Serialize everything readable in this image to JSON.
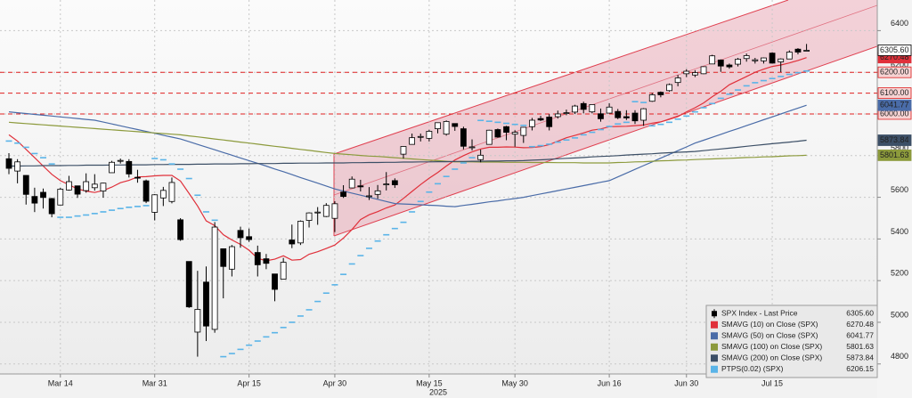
{
  "chart_data": {
    "type": "candlestick",
    "year_label": "2025",
    "categories": [
      null,
      null,
      null,
      null,
      null,
      null,
      "Mar 14",
      null,
      null,
      null,
      null,
      null,
      null,
      null,
      null,
      null,
      null,
      "Mar 31",
      null,
      null,
      null,
      null,
      null,
      null,
      null,
      null,
      null,
      null,
      "Apr 15",
      null,
      null,
      null,
      null,
      null,
      null,
      null,
      null,
      null,
      "Apr 30",
      null,
      null,
      null,
      null,
      null,
      null,
      null,
      null,
      null,
      null,
      "May 15",
      null,
      null,
      null,
      null,
      null,
      null,
      null,
      null,
      null,
      "May 30",
      null,
      null,
      null,
      null,
      null,
      null,
      null,
      null,
      null,
      null,
      "Jun 16",
      null,
      null,
      null,
      null,
      null,
      null,
      null,
      null,
      "Jun 30",
      null,
      null,
      null,
      null,
      null,
      null,
      null,
      null,
      null,
      "Jul 15",
      null,
      null,
      null,
      null
    ],
    "ohlc": [
      [
        5785,
        5812,
        5711,
        5739
      ],
      [
        5726,
        5783,
        5667,
        5770
      ],
      [
        5705,
        5706,
        5565,
        5614
      ],
      [
        5604,
        5646,
        5529,
        5572
      ],
      [
        5624,
        5642,
        5546,
        5599
      ],
      [
        5594,
        5597,
        5504,
        5521
      ],
      [
        5563,
        5645,
        5563,
        5639
      ],
      [
        5635,
        5703,
        5632,
        5675
      ],
      [
        5655,
        5655,
        5597,
        5615
      ],
      [
        5632,
        5715,
        5622,
        5675
      ],
      [
        5646,
        5711,
        5632,
        5663
      ],
      [
        5630,
        5670,
        5598,
        5668
      ],
      [
        5718,
        5775,
        5718,
        5768
      ],
      [
        5775,
        5786,
        5762,
        5777
      ],
      [
        5772,
        5783,
        5695,
        5712
      ],
      [
        5696,
        5732,
        5670,
        5693
      ],
      [
        5679,
        5685,
        5572,
        5581
      ],
      [
        5528,
        5615,
        5489,
        5612
      ],
      [
        5597,
        5650,
        5558,
        5633
      ],
      [
        5580,
        5695,
        5571,
        5671
      ],
      [
        5492,
        5500,
        5391,
        5397
      ],
      [
        5292,
        5292,
        5069,
        5074
      ],
      [
        4953,
        5247,
        4835,
        5062
      ],
      [
        5193,
        5268,
        4910,
        4982
      ],
      [
        4966,
        5481,
        4950,
        5457
      ],
      [
        5353,
        5353,
        5115,
        5268
      ],
      [
        5255,
        5371,
        5220,
        5363
      ],
      [
        5441,
        5459,
        5358,
        5406
      ],
      [
        5411,
        5450,
        5386,
        5397
      ],
      [
        5335,
        5368,
        5220,
        5276
      ],
      [
        5305,
        5328,
        5255,
        5283
      ],
      [
        5232,
        5232,
        5101,
        5158
      ],
      [
        5207,
        5309,
        5207,
        5288
      ],
      [
        5395,
        5469,
        5356,
        5376
      ],
      [
        5381,
        5489,
        5371,
        5485
      ],
      [
        5489,
        5528,
        5455,
        5525
      ],
      [
        5529,
        5553,
        5468,
        5529
      ],
      [
        5508,
        5572,
        5505,
        5561
      ],
      [
        5499,
        5581,
        5433,
        5569
      ],
      [
        5625,
        5658,
        5597,
        5604
      ],
      [
        5645,
        5700,
        5644,
        5687
      ],
      [
        5655,
        5684,
        5628,
        5650
      ],
      [
        5606,
        5649,
        5587,
        5607
      ],
      [
        5614,
        5659,
        5593,
        5631
      ],
      [
        5663,
        5721,
        5633,
        5664
      ],
      [
        5680,
        5691,
        5645,
        5660
      ],
      [
        5807,
        5845,
        5786,
        5844
      ],
      [
        5854,
        5906,
        5854,
        5886
      ],
      [
        5891,
        5906,
        5868,
        5892
      ],
      [
        5883,
        5924,
        5868,
        5917
      ],
      [
        5929,
        5958,
        5907,
        5958
      ],
      [
        5903,
        5969,
        5896,
        5964
      ],
      [
        5954,
        5955,
        5919,
        5940
      ],
      [
        5929,
        5939,
        5830,
        5845
      ],
      [
        5841,
        5878,
        5825,
        5842
      ],
      [
        5781,
        5829,
        5768,
        5802
      ],
      [
        5854,
        5924,
        5854,
        5922
      ],
      [
        5925,
        5930,
        5886,
        5889
      ],
      [
        5939,
        5943,
        5874,
        5912
      ],
      [
        5903,
        5922,
        5843,
        5912
      ],
      [
        5897,
        5938,
        5861,
        5936
      ],
      [
        5939,
        5981,
        5921,
        5970
      ],
      [
        5978,
        5991,
        5966,
        5971
      ],
      [
        5985,
        5999,
        5921,
        5939
      ],
      [
        5987,
        6016,
        5978,
        6000
      ],
      [
        6004,
        6021,
        5994,
        6006
      ],
      [
        6009,
        6044,
        6000,
        6038
      ],
      [
        6050,
        6059,
        6003,
        6022
      ],
      [
        6010,
        6045,
        6003,
        6045
      ],
      [
        6001,
        6026,
        5963,
        5977
      ],
      [
        6004,
        6051,
        6004,
        6033
      ],
      [
        6012,
        6024,
        5975,
        5982
      ],
      [
        5987,
        6018,
        5971,
        5981
      ],
      [
        6004,
        6018,
        5952,
        5967
      ],
      [
        5970,
        6028,
        5943,
        6025
      ],
      [
        6061,
        6101,
        6058,
        6092
      ],
      [
        6104,
        6108,
        6080,
        6092
      ],
      [
        6112,
        6146,
        6107,
        6141
      ],
      [
        6151,
        6187,
        6133,
        6173
      ],
      [
        6193,
        6215,
        6177,
        6205
      ],
      [
        6187,
        6210,
        6177,
        6198
      ],
      [
        6193,
        6228,
        6191,
        6227
      ],
      [
        6240,
        6284,
        6240,
        6279
      ],
      [
        6259,
        6262,
        6202,
        6230
      ],
      [
        6235,
        6242,
        6217,
        6226
      ],
      [
        6239,
        6269,
        6228,
        6263
      ],
      [
        6266,
        6290,
        6251,
        6280
      ],
      [
        6255,
        6269,
        6242,
        6260
      ],
      [
        6255,
        6271,
        6242,
        6269
      ],
      [
        6292,
        6296,
        6242,
        6244
      ],
      [
        6250,
        6267,
        6201,
        6264
      ],
      [
        6264,
        6305,
        6264,
        6297
      ],
      [
        6311,
        6316,
        6286,
        6297
      ],
      [
        6304,
        6336,
        6304,
        6305.6
      ]
    ],
    "up_color": "#ffffff",
    "down_color": "#000000",
    "price_name": "SPX Index - Last Price",
    "price_last": {
      "value": 6305.6,
      "label": "6305.60"
    },
    "series": [
      {
        "name": "SMAVG (10) on Close (SPX)",
        "color": "#e0303a",
        "style": "line",
        "tag": true,
        "last": {
          "value": 6270.48,
          "label": "6270.48"
        },
        "values": [
          5900,
          5870,
          5830,
          5790,
          5750,
          5710,
          5680,
          5660,
          5640,
          5630,
          5623,
          5633,
          5649,
          5670,
          5681,
          5698,
          5699,
          5703,
          5705,
          5705,
          5678,
          5619,
          5558,
          5487,
          5464,
          5420,
          5395,
          5374,
          5346,
          5307,
          5295,
          5303,
          5319,
          5298,
          5301,
          5327,
          5339,
          5354,
          5371,
          5404,
          5445,
          5493,
          5516,
          5531,
          5549,
          5563,
          5595,
          5628,
          5661,
          5692,
          5719,
          5750,
          5779,
          5800,
          5818,
          5832,
          5840,
          5840,
          5842,
          5841,
          5838,
          5839,
          5843,
          5853,
          5869,
          5886,
          5897,
          5909,
          5922,
          5928,
          5939,
          5940,
          5941,
          5944,
          5947,
          5956,
          5962,
          5974,
          5987,
          6010,
          6030,
          6053,
          6083,
          6109,
          6140,
          6160,
          6180,
          6200,
          6215,
          6228,
          6235,
          6245,
          6257,
          6270.48
        ]
      },
      {
        "name": "SMAVG (50) on Close (SPX)",
        "color": "#4a6ca8",
        "style": "line",
        "tag": true,
        "last": {
          "value": 6041.77,
          "label": "6041.77"
        },
        "values": [
          6010,
          6006,
          6002,
          5998,
          5994,
          5990,
          5986,
          5982,
          5978,
          5974,
          5970,
          5961,
          5952,
          5943,
          5934,
          5925,
          5916,
          5907,
          5898,
          5889,
          5880,
          5867,
          5854,
          5841,
          5828,
          5815,
          5802,
          5789,
          5776,
          5763,
          5750,
          5736,
          5723,
          5709,
          5695,
          5681,
          5668,
          5654,
          5640,
          5630,
          5620,
          5610,
          5600,
          5590,
          5580,
          5570,
          5568,
          5566,
          5564,
          5562,
          5560,
          5557,
          5555,
          5561,
          5566,
          5572,
          5578,
          5583,
          5589,
          5594,
          5600,
          5608,
          5616,
          5624,
          5632,
          5640,
          5648,
          5656,
          5664,
          5672,
          5680,
          5698,
          5716,
          5734,
          5752,
          5770,
          5788,
          5806,
          5824,
          5842,
          5860,
          5874,
          5888,
          5902,
          5916,
          5930,
          5944,
          5958,
          5972,
          5986,
          6000,
          6014,
          6028,
          6041.77
        ]
      },
      {
        "name": "SMAVG (100) on Close (SPX)",
        "color": "#8c9a3c",
        "style": "line",
        "tag": true,
        "last": {
          "value": 5801.63,
          "label": "5801.63"
        },
        "values": [
          5960,
          5957,
          5954,
          5951,
          5948,
          5945,
          5942,
          5939,
          5936,
          5933,
          5930,
          5927,
          5924,
          5921,
          5918,
          5915,
          5912,
          5909,
          5906,
          5903,
          5900,
          5895,
          5890,
          5885,
          5880,
          5875,
          5870,
          5865,
          5860,
          5855,
          5850,
          5845,
          5840,
          5835,
          5830,
          5825,
          5820,
          5815,
          5810,
          5807,
          5804,
          5801,
          5798,
          5796,
          5793,
          5790,
          5787,
          5784,
          5781,
          5778,
          5776,
          5773,
          5770,
          5770,
          5770,
          5769,
          5769,
          5769,
          5768,
          5768,
          5768,
          5767,
          5767,
          5767,
          5766,
          5766,
          5766,
          5765,
          5765,
          5765,
          5765,
          5767,
          5768,
          5770,
          5771,
          5773,
          5775,
          5776,
          5778,
          5779,
          5781,
          5783,
          5784,
          5786,
          5787,
          5789,
          5791,
          5792,
          5794,
          5795,
          5797,
          5799,
          5800,
          5801.63
        ]
      },
      {
        "name": "SMAVG (200) on Close (SPX)",
        "color": "#3c4f66",
        "style": "line",
        "tag": true,
        "last": {
          "value": 5873.84,
          "label": "5873.84"
        },
        "values": [
          5750,
          5750,
          5751,
          5751,
          5752,
          5752,
          5752,
          5753,
          5753,
          5754,
          5754,
          5754,
          5755,
          5755,
          5756,
          5756,
          5756,
          5757,
          5757,
          5758,
          5758,
          5758,
          5759,
          5759,
          5760,
          5760,
          5760,
          5761,
          5761,
          5762,
          5762,
          5762,
          5763,
          5763,
          5764,
          5764,
          5764,
          5765,
          5765,
          5765,
          5766,
          5766,
          5767,
          5767,
          5768,
          5768,
          5769,
          5769,
          5770,
          5770,
          5771,
          5771,
          5772,
          5772,
          5773,
          5773,
          5774,
          5774,
          5775,
          5775,
          5776,
          5778,
          5780,
          5782,
          5785,
          5787,
          5789,
          5791,
          5794,
          5796,
          5798,
          5800,
          5803,
          5805,
          5807,
          5809,
          5812,
          5814,
          5816,
          5818,
          5820,
          5824,
          5828,
          5832,
          5836,
          5840,
          5845,
          5849,
          5853,
          5857,
          5861,
          5865,
          5869,
          5873.84
        ]
      },
      {
        "name": "PTPS(0.02) (SPX)",
        "color": "#5ab4e8",
        "style": "dots",
        "tag": false,
        "last": {
          "value": 6206.15,
          "label": "6206.15"
        },
        "values": [
          5870,
          5860,
          5840,
          5810,
          5790,
          5760,
          5504,
          5504,
          5510,
          5515,
          5522,
          5530,
          5538,
          5546,
          5552,
          5556,
          5560,
          5786,
          5780,
          5760,
          5735,
          5690,
          5610,
          5530,
          5490,
          4835,
          4850,
          4870,
          4890,
          4910,
          4930,
          4950,
          4975,
          5000,
          5030,
          5060,
          5100,
          5140,
          5180,
          5230,
          5280,
          5320,
          5355,
          5390,
          5420,
          5450,
          5480,
          5530,
          5580,
          5625,
          5665,
          5700,
          5735,
          5765,
          5790,
          5969,
          5965,
          5960,
          5955,
          5950,
          5945,
          5843,
          5848,
          5855,
          5865,
          5875,
          5885,
          5900,
          5912,
          5925,
          5940,
          5952,
          5960,
          6059,
          6055,
          5943,
          5950,
          5960,
          5975,
          5990,
          6010,
          6030,
          6050,
          6075,
          6095,
          6115,
          6135,
          6150,
          6160,
          6170,
          6180,
          6190,
          6198,
          6206.15
        ]
      }
    ],
    "ylim": [
      4752,
      6547
    ],
    "yticks": [
      4800,
      5000,
      5200,
      5400,
      5600,
      5800,
      6000,
      6200,
      6400
    ],
    "grid": true,
    "hline_color": "#e02020",
    "hlines": [
      {
        "value": 6200,
        "label": "6200.00"
      },
      {
        "value": 6100,
        "label": "6100.00"
      },
      {
        "value": 6000,
        "label": "6000.00"
      }
    ],
    "legend": "lower right"
  }
}
